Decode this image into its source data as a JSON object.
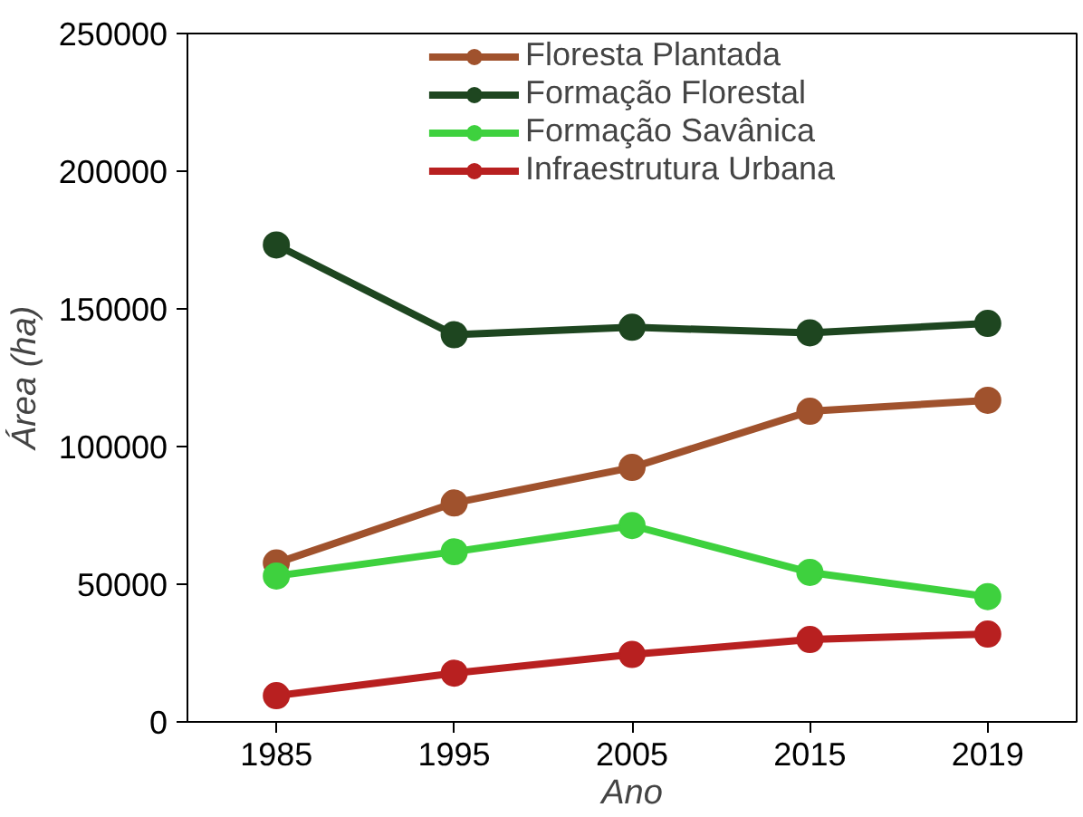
{
  "chart_data": {
    "type": "line",
    "xlabel": "Ano",
    "ylabel": "Área (ha)",
    "categories": [
      "1985",
      "1995",
      "2005",
      "2015",
      "2019"
    ],
    "ylim": [
      0,
      250000
    ],
    "yticks": [
      0,
      50000,
      100000,
      150000,
      200000,
      250000
    ],
    "grid": false,
    "legend": "top",
    "marker": "circle",
    "line_style": "solid",
    "series": [
      {
        "name": "Floresta Plantada",
        "color": "#a0522d",
        "values": [
          57700,
          79500,
          92400,
          112800,
          116800
        ]
      },
      {
        "name": "Formação Florestal",
        "color": "#1e4620",
        "values": [
          173200,
          140600,
          143300,
          141300,
          144700
        ]
      },
      {
        "name": "Formação Savânica",
        "color": "#3ed13e",
        "values": [
          53000,
          61800,
          71300,
          54300,
          45500
        ]
      },
      {
        "name": "Infraestrutura Urbana",
        "color": "#b82020",
        "values": [
          9500,
          17700,
          24500,
          29900,
          31900
        ]
      }
    ]
  }
}
